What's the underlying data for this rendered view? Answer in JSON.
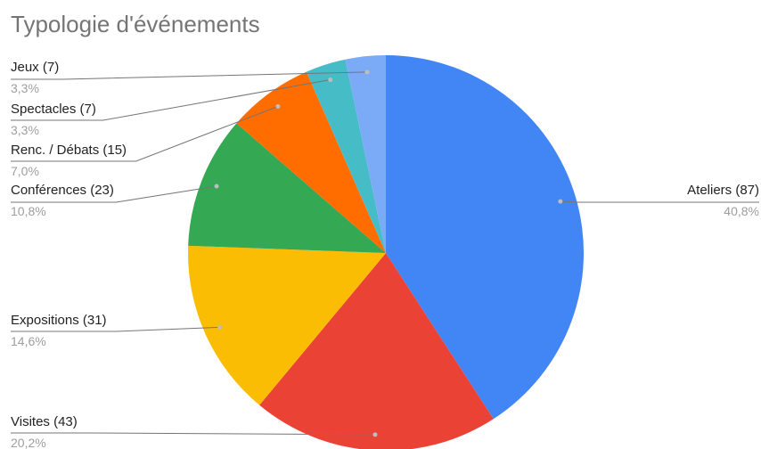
{
  "chart_data": {
    "type": "pie",
    "title": "Typologie d'événements",
    "slices": [
      {
        "name": "Ateliers (87)",
        "value": 87,
        "percent_label": "40,8%",
        "color": "#4285F4"
      },
      {
        "name": "Visites (43)",
        "value": 43,
        "percent_label": "20,2%",
        "color": "#EA4335"
      },
      {
        "name": "Expositions (31)",
        "value": 31,
        "percent_label": "14,6%",
        "color": "#FBBC04"
      },
      {
        "name": "Conférences (23)",
        "value": 23,
        "percent_label": "10,8%",
        "color": "#34A853"
      },
      {
        "name": "Renc. / Débats (15)",
        "value": 15,
        "percent_label": "7,0%",
        "color": "#FF6D01"
      },
      {
        "name": "Spectacles (7)",
        "value": 7,
        "percent_label": "3,3%",
        "color": "#46BDC6"
      },
      {
        "name": "Jeux (7)",
        "value": 7,
        "percent_label": "3,3%",
        "color": "#7BAAF7"
      }
    ],
    "legend_placement": "labels-outside"
  }
}
